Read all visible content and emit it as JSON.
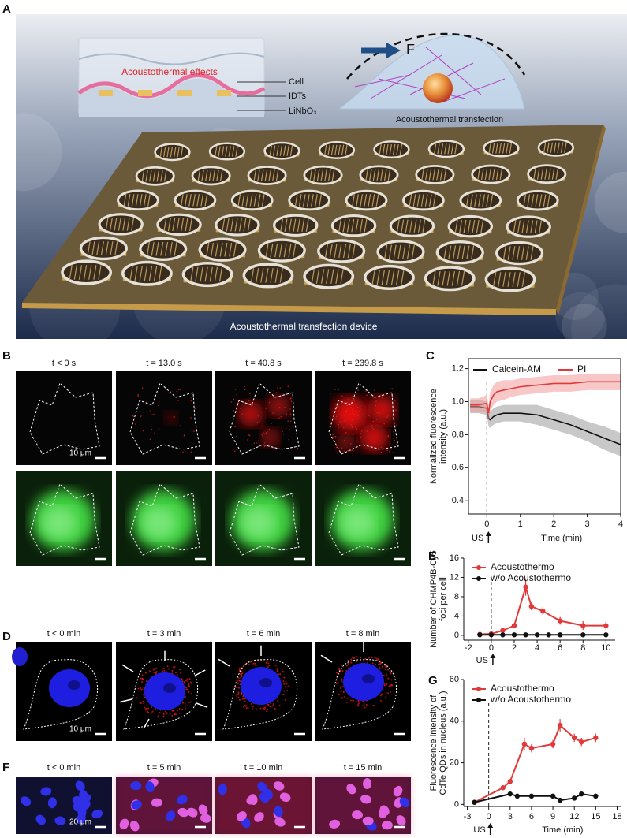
{
  "panel_labels": [
    "A",
    "B",
    "C",
    "D",
    "E",
    "F",
    "G"
  ],
  "panel_a": {
    "box_title": "Acoustothermal effects",
    "layers": [
      "Cell",
      "IDTs",
      "LiNbO₃"
    ],
    "force": "F",
    "cell_caption": "Acoustothermal transfection",
    "device_caption": "Acoustothermal transfection device"
  },
  "panel_b": {
    "times": [
      "t < 0 s",
      "t = 13.0 s",
      "t = 40.8 s",
      "t = 239.8 s"
    ],
    "scale_bar": "10 μm"
  },
  "panel_d": {
    "times": [
      "t < 0 min",
      "t = 3 min",
      "t = 6 min",
      "t = 8 min"
    ],
    "scale_bar": "10 μm"
  },
  "panel_f": {
    "times": [
      "t < 0 min",
      "t = 5 min",
      "t = 10 min",
      "t = 15 min"
    ],
    "scale_bar": "20 μm"
  },
  "chart_data": [
    {
      "type": "line",
      "error_style": "band",
      "box": true,
      "legend": "upper center",
      "ylabel": [
        "Normalized fluorescence",
        "intensity (a.u.)"
      ],
      "xlabel": "Time (min)",
      "annotation": {
        "text": "US",
        "x": 0
      },
      "xlim": [
        -0.55,
        4
      ],
      "xticks": [
        0,
        1,
        2,
        3,
        4
      ],
      "ylim": [
        0.32,
        1.26
      ],
      "yticks": [
        0.4,
        0.6,
        0.8,
        {
          "value": 1,
          "label": "1.0"
        },
        1.2
      ],
      "series": [
        {
          "name": "Calcein-AM",
          "color": "#111111",
          "band_color": "#9a9a9a",
          "x": [
            -0.5,
            -0.25,
            0,
            0.05,
            0.1,
            0.2,
            0.3,
            0.5,
            0.75,
            1,
            1.5,
            2,
            2.5,
            3,
            3.5,
            4
          ],
          "values": [
            0.97,
            0.97,
            0.96,
            0.9,
            0.89,
            0.91,
            0.92,
            0.93,
            0.93,
            0.93,
            0.92,
            0.89,
            0.86,
            0.82,
            0.78,
            0.74
          ],
          "error": [
            0.04,
            0.04,
            0.04,
            0.05,
            0.05,
            0.05,
            0.05,
            0.05,
            0.05,
            0.05,
            0.06,
            0.06,
            0.06,
            0.06,
            0.07,
            0.07
          ]
        },
        {
          "name": "PI",
          "color": "#e03a3a",
          "band_color": "#f39a9a",
          "x": [
            -0.5,
            -0.25,
            0,
            0.05,
            0.1,
            0.2,
            0.3,
            0.5,
            0.75,
            1,
            1.5,
            2,
            2.5,
            3,
            3.5,
            4
          ],
          "values": [
            0.98,
            0.98,
            0.99,
            0.93,
            1.0,
            1.04,
            1.06,
            1.07,
            1.08,
            1.09,
            1.1,
            1.11,
            1.11,
            1.12,
            1.12,
            1.12
          ],
          "error": [
            0.04,
            0.04,
            0.05,
            0.05,
            0.06,
            0.06,
            0.06,
            0.06,
            0.05,
            0.05,
            0.05,
            0.05,
            0.05,
            0.05,
            0.05,
            0.05
          ]
        }
      ]
    },
    {
      "type": "line",
      "error_style": "bar",
      "legend": "upper left",
      "ylabel": [
        "Number of CHMP4B-Cy5",
        "foci per cell"
      ],
      "annotation": {
        "text": "US",
        "x": 0
      },
      "xlim": [
        -2.4,
        10.8
      ],
      "xticks": [
        -2,
        0,
        2,
        4,
        6,
        8,
        10
      ],
      "ylim": [
        -1,
        16
      ],
      "yticks": [
        0,
        4,
        8,
        12,
        16
      ],
      "series": [
        {
          "name": "Acoustothermo",
          "color": "#e03a3a",
          "x": [
            -1,
            0,
            1,
            2,
            3,
            3.5,
            4.5,
            6,
            8,
            10
          ],
          "values": [
            0.2,
            0.3,
            1,
            2,
            10,
            6,
            5,
            3,
            2,
            2
          ],
          "error": [
            0.2,
            0.3,
            0.4,
            0.5,
            1.8,
            0.8,
            0.8,
            0.8,
            0.9,
            0.9
          ]
        },
        {
          "name": "w/o Acoustothermo",
          "color": "#111111",
          "x": [
            -1,
            0,
            1,
            2,
            3,
            4,
            5,
            6,
            8,
            10
          ],
          "values": [
            0.1,
            0.1,
            0.1,
            0.1,
            0.1,
            0.1,
            0.1,
            0.1,
            0.1,
            0.1
          ],
          "error": [
            0.1,
            0.1,
            0.1,
            0.1,
            0.1,
            0.1,
            0.1,
            0.1,
            0.1,
            0.1
          ]
        }
      ]
    },
    {
      "type": "line",
      "error_style": "bar",
      "legend": "upper left",
      "ylabel": [
        "Fluorescence intensity of",
        "CdTe QDs in nucleus (a.u.)"
      ],
      "xlabel": "Time (min)",
      "annotation": {
        "text": "US",
        "x": 0
      },
      "xlim": [
        -3.5,
        18.5
      ],
      "xticks": [
        -3,
        0,
        3,
        6,
        9,
        12,
        15,
        18
      ],
      "ylim": [
        -1,
        60
      ],
      "yticks": [
        0,
        20,
        40,
        60
      ],
      "series": [
        {
          "name": "Acoustothermo",
          "color": "#e03a3a",
          "x": [
            -2,
            2,
            3,
            5,
            6,
            9,
            10,
            12,
            13,
            15
          ],
          "values": [
            1,
            8,
            11,
            29,
            27,
            29,
            38,
            32,
            30,
            32
          ],
          "error": [
            0.5,
            1,
            1,
            3,
            2,
            2,
            3,
            2,
            2,
            2
          ]
        },
        {
          "name": "w/o Acoustothermo",
          "color": "#111111",
          "x": [
            -2,
            3,
            4,
            6,
            9,
            10,
            12,
            13,
            15
          ],
          "values": [
            1,
            5,
            4,
            4,
            4,
            2,
            3,
            5,
            4
          ],
          "error": [
            0.3,
            0.5,
            0.5,
            0.5,
            0.5,
            0.5,
            0.5,
            0.8,
            0.8
          ]
        }
      ]
    }
  ]
}
